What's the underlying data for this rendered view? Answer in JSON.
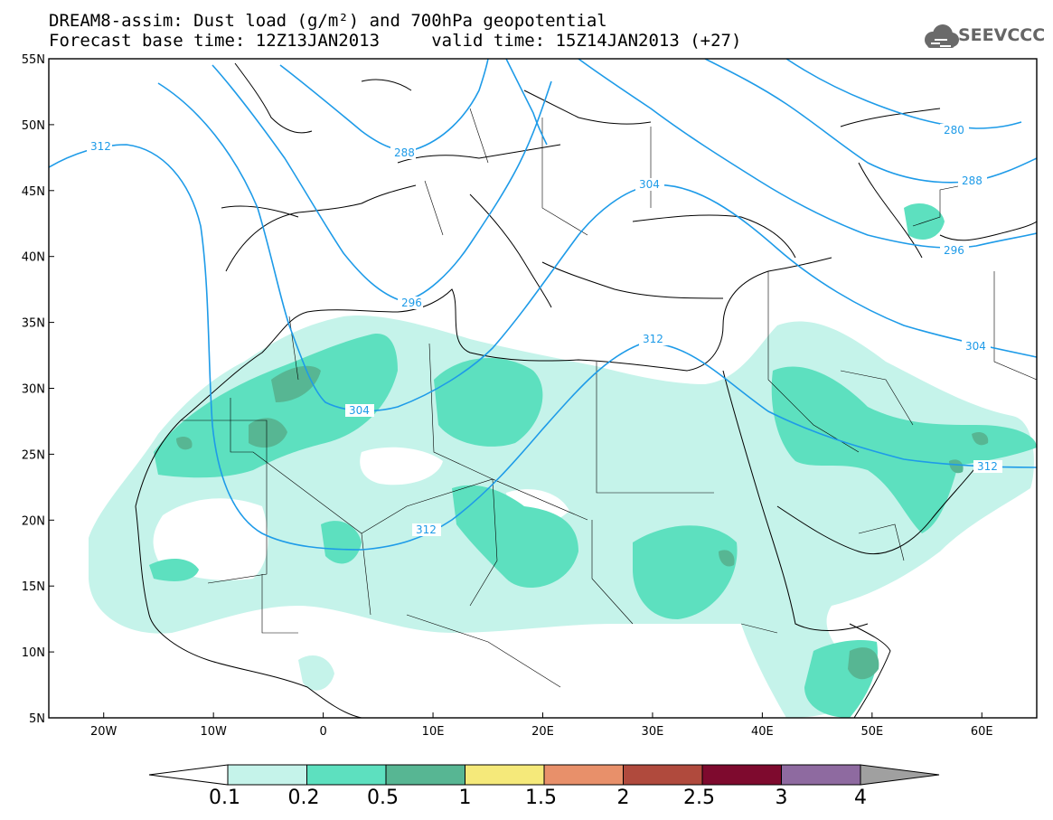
{
  "title": {
    "line1": "DREAM8-assim: Dust load (g/m²) and 700hPa geopotential",
    "line2": "Forecast base time: 12Z13JAN2013     valid time: 15Z14JAN2013 (+27)"
  },
  "logo": {
    "text": "SEEVCCC",
    "icon": "cloud-logo-icon"
  },
  "axes": {
    "lon_ticks": [
      "20W",
      "10W",
      "0",
      "10E",
      "20E",
      "30E",
      "40E",
      "50E",
      "60E"
    ],
    "lat_ticks": [
      "55N",
      "50N",
      "45N",
      "40N",
      "35N",
      "30N",
      "25N",
      "20N",
      "15N",
      "10N",
      "5N"
    ],
    "lon_range": [
      -25,
      65
    ],
    "lat_range": [
      5,
      55
    ]
  },
  "contour_labels": [
    {
      "id": "c312a",
      "text": "312"
    },
    {
      "id": "c288",
      "text": "288"
    },
    {
      "id": "c296a",
      "text": "296"
    },
    {
      "id": "c304a",
      "text": "304"
    },
    {
      "id": "c312b",
      "text": "312"
    },
    {
      "id": "c312c",
      "text": "312"
    },
    {
      "id": "c304b",
      "text": "304"
    },
    {
      "id": "c312d",
      "text": "312"
    },
    {
      "id": "c304c",
      "text": "304"
    },
    {
      "id": "c296b",
      "text": "296"
    },
    {
      "id": "c288b",
      "text": "288"
    },
    {
      "id": "c280",
      "text": "280"
    }
  ],
  "colorbar": {
    "labels": [
      "0.1",
      "0.2",
      "0.5",
      "1",
      "1.5",
      "2",
      "2.5",
      "3",
      "4"
    ],
    "colors": [
      "#ffffff",
      "#c5f3ea",
      "#5de0bf",
      "#57b693",
      "#f5e97a",
      "#e8906a",
      "#b04a3d",
      "#7e0a2e",
      "#8e6aa0",
      "#a0a0a0"
    ]
  },
  "colors": {
    "contour": "#1e9be8",
    "dust_light": "#c5f3ea",
    "dust_mid": "#5de0bf",
    "dust_dark": "#57b693"
  }
}
